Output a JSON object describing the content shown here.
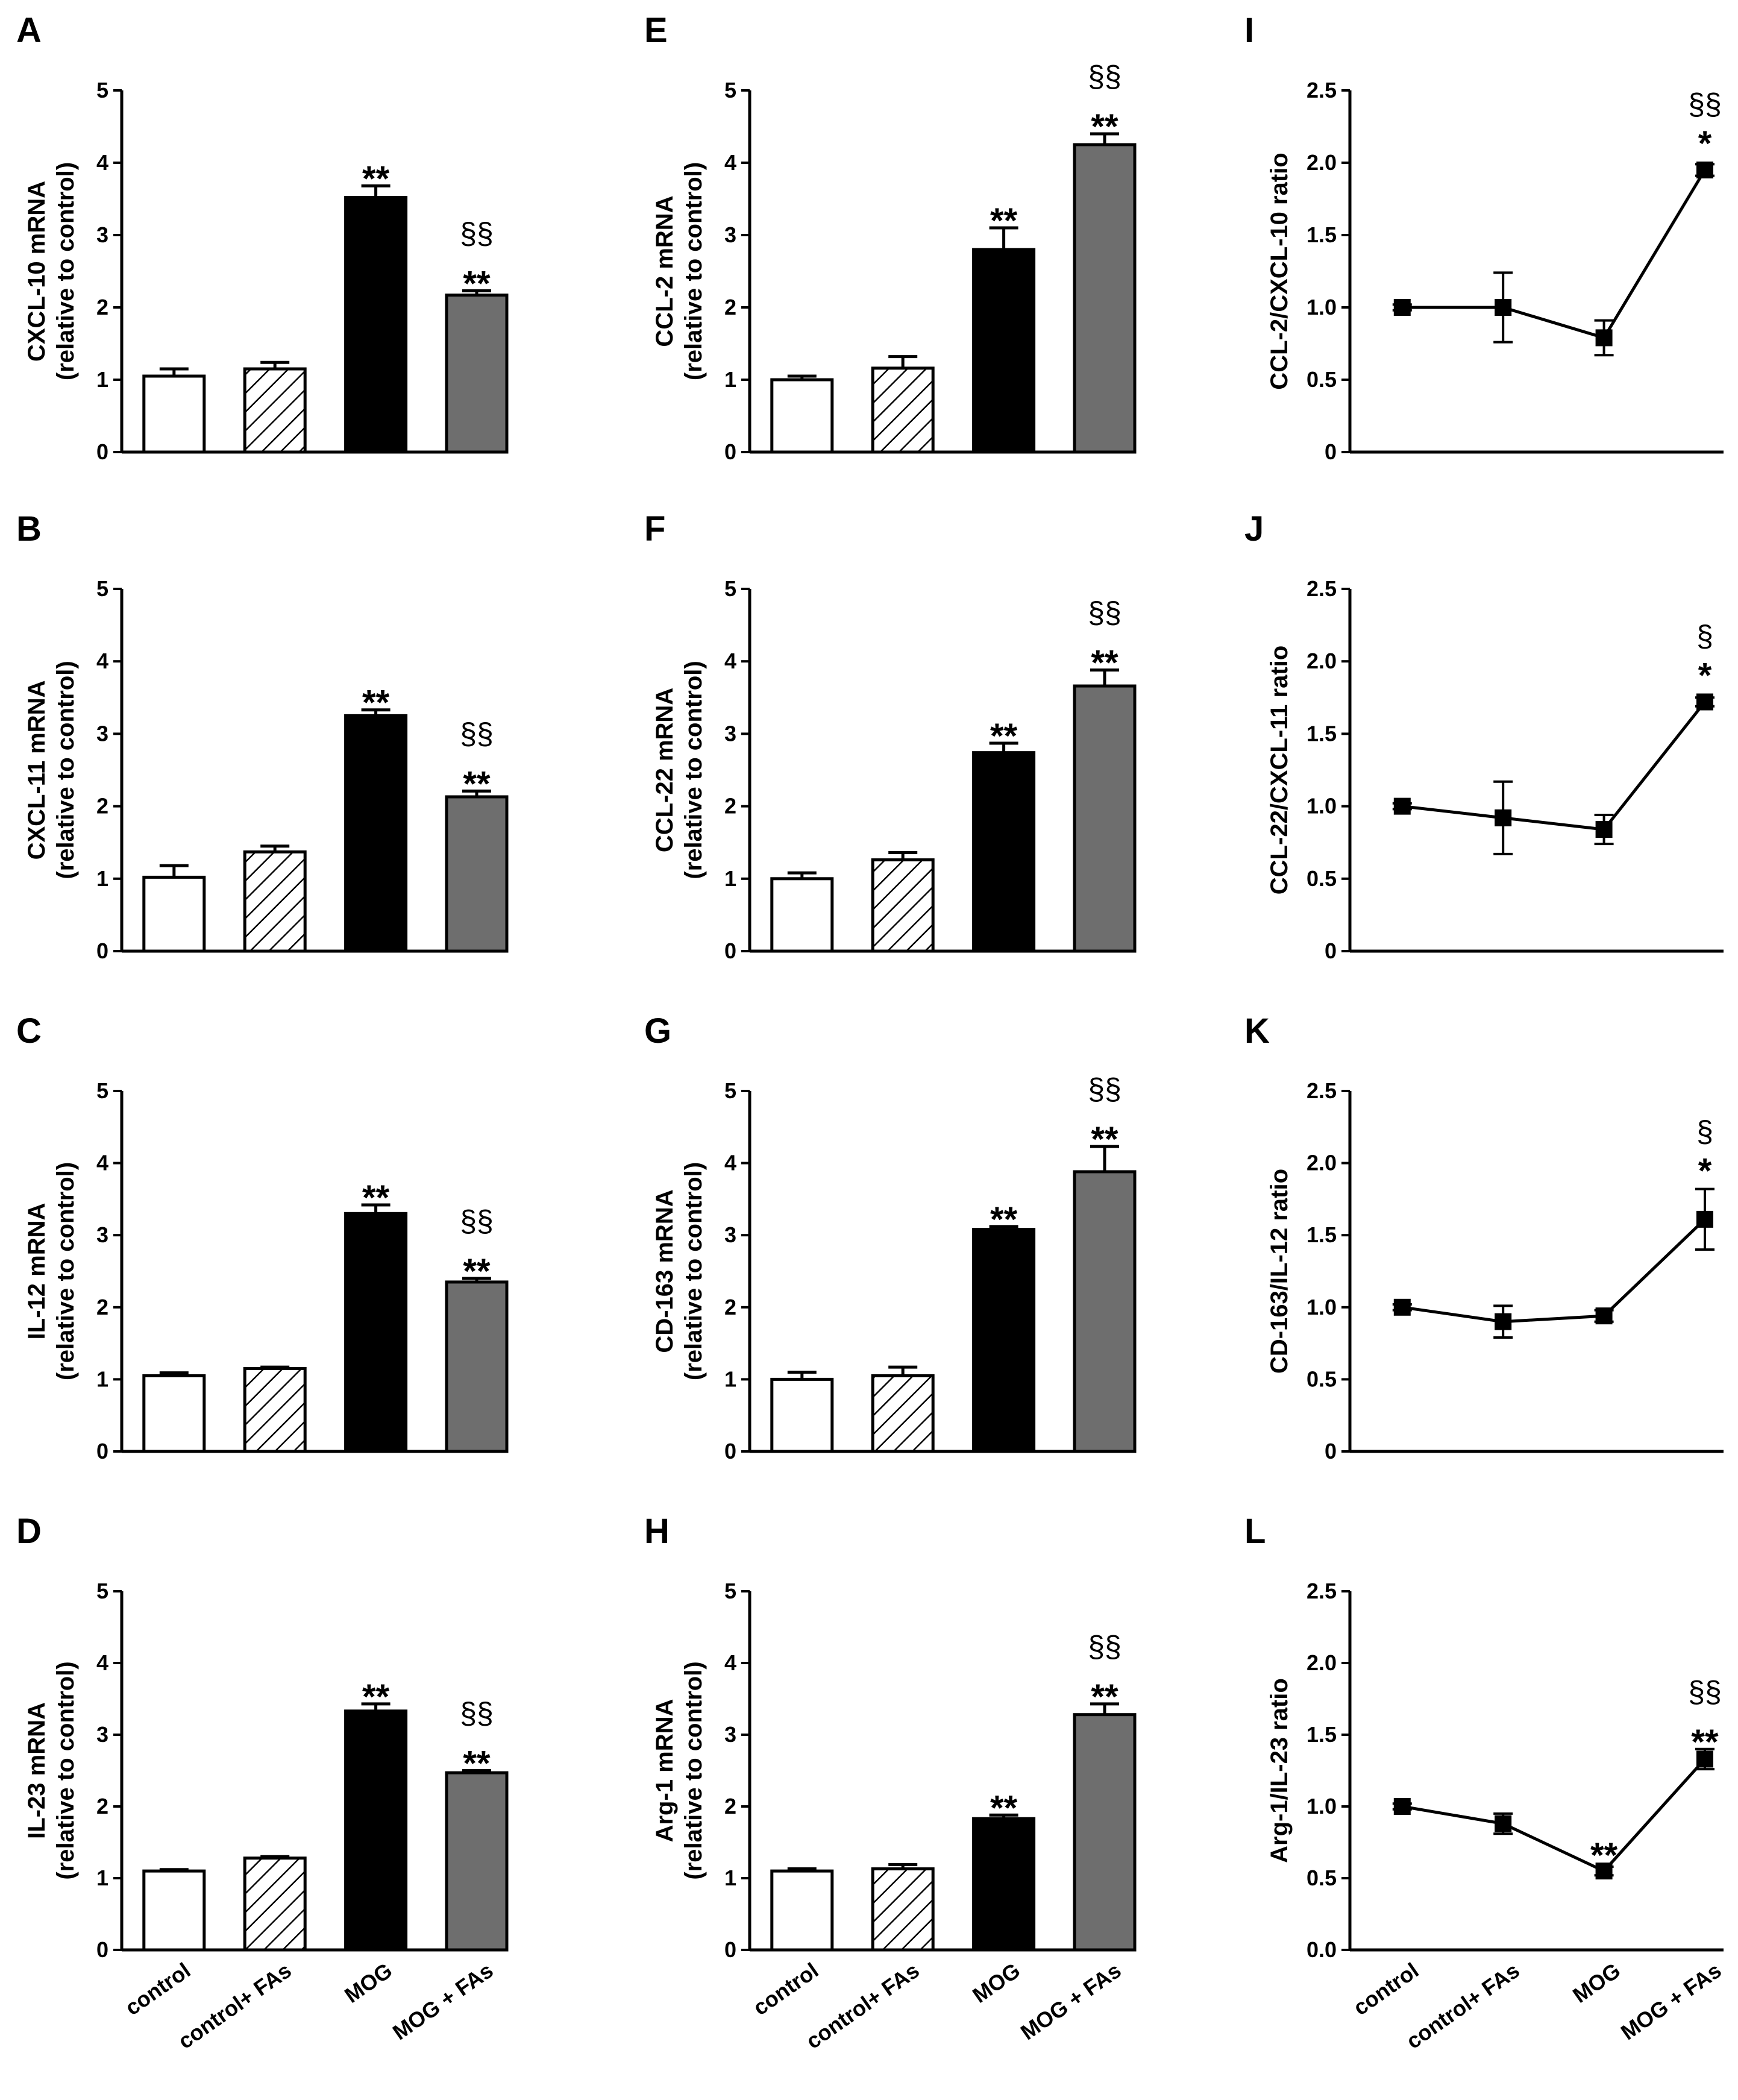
{
  "colors": {
    "axis": "#000000",
    "control": "#ffffff",
    "control_fas": "hatched",
    "mog": "#000000",
    "mog_fas": "#6e6e6e",
    "line": "#000000"
  },
  "chart_data": [
    {
      "id": "A",
      "type": "bar",
      "ylabel": [
        "CXCL-10 mRNA",
        "(relative to control)"
      ],
      "ylim": [
        0,
        5
      ],
      "ticks": [
        "0",
        "1",
        "2",
        "3",
        "4",
        "5"
      ],
      "categories": [
        "control",
        "control+ FAs",
        "MOG",
        "MOG + FAs"
      ],
      "values": [
        1.05,
        1.15,
        3.52,
        2.17
      ],
      "errors": [
        0.1,
        0.09,
        0.16,
        0.06
      ],
      "annotations": [
        {
          "index": 2,
          "lines": [
            "**"
          ]
        },
        {
          "index": 3,
          "lines": [
            "§§",
            "**"
          ]
        }
      ]
    },
    {
      "id": "B",
      "type": "bar",
      "ylabel": [
        "CXCL-11 mRNA",
        "(relative to control)"
      ],
      "ylim": [
        0,
        5
      ],
      "ticks": [
        "0",
        "1",
        "2",
        "3",
        "4",
        "5"
      ],
      "categories": [
        "control",
        "control+ FAs",
        "MOG",
        "MOG + FAs"
      ],
      "values": [
        1.02,
        1.37,
        3.25,
        2.13
      ],
      "errors": [
        0.16,
        0.08,
        0.08,
        0.08
      ],
      "annotations": [
        {
          "index": 2,
          "lines": [
            "**"
          ]
        },
        {
          "index": 3,
          "lines": [
            "§§",
            "**"
          ]
        }
      ]
    },
    {
      "id": "C",
      "type": "bar",
      "ylabel": [
        "IL-12 mRNA",
        "(relative to control)"
      ],
      "ylim": [
        0,
        5
      ],
      "ticks": [
        "0",
        "1",
        "2",
        "3",
        "4",
        "5"
      ],
      "categories": [
        "control",
        "control+ FAs",
        "MOG",
        "MOG + FAs"
      ],
      "values": [
        1.05,
        1.15,
        3.3,
        2.35
      ],
      "errors": [
        0.04,
        0.02,
        0.12,
        0.05
      ],
      "annotations": [
        {
          "index": 2,
          "lines": [
            "**"
          ]
        },
        {
          "index": 3,
          "lines": [
            "§§",
            "**"
          ]
        }
      ]
    },
    {
      "id": "D",
      "type": "bar",
      "ylabel": [
        "IL-23 mRNA",
        "(relative to control)"
      ],
      "ylim": [
        0,
        5
      ],
      "ticks": [
        "0",
        "1",
        "2",
        "3",
        "4",
        "5"
      ],
      "categories": [
        "control",
        "control+ FAs",
        "MOG",
        "MOG + FAs"
      ],
      "values": [
        1.1,
        1.28,
        3.33,
        2.47
      ],
      "errors": [
        0.02,
        0.02,
        0.1,
        0.03
      ],
      "annotations": [
        {
          "index": 2,
          "lines": [
            "**"
          ]
        },
        {
          "index": 3,
          "lines": [
            "§§",
            "**"
          ]
        }
      ]
    },
    {
      "id": "E",
      "type": "bar",
      "ylabel": [
        "CCL-2 mRNA",
        "(relative to control)"
      ],
      "ylim": [
        0,
        5
      ],
      "ticks": [
        "0",
        "1",
        "2",
        "3",
        "4",
        "5"
      ],
      "categories": [
        "control",
        "control+ FAs",
        "MOG",
        "MOG + FAs"
      ],
      "values": [
        1.0,
        1.16,
        2.8,
        4.25
      ],
      "errors": [
        0.05,
        0.16,
        0.3,
        0.15
      ],
      "annotations": [
        {
          "index": 2,
          "lines": [
            "**"
          ]
        },
        {
          "index": 3,
          "lines": [
            "§§",
            "**"
          ]
        }
      ]
    },
    {
      "id": "F",
      "type": "bar",
      "ylabel": [
        "CCL-22 mRNA",
        "(relative to control)"
      ],
      "ylim": [
        0,
        5
      ],
      "ticks": [
        "0",
        "1",
        "2",
        "3",
        "4",
        "5"
      ],
      "categories": [
        "control",
        "control+ FAs",
        "MOG",
        "MOG + FAs"
      ],
      "values": [
        1.0,
        1.26,
        2.74,
        3.66
      ],
      "errors": [
        0.08,
        0.1,
        0.13,
        0.22
      ],
      "annotations": [
        {
          "index": 2,
          "lines": [
            "**"
          ]
        },
        {
          "index": 3,
          "lines": [
            "§§",
            "**"
          ]
        }
      ]
    },
    {
      "id": "G",
      "type": "bar",
      "ylabel": [
        "CD-163 mRNA",
        "(relative to control)"
      ],
      "ylim": [
        0,
        5
      ],
      "ticks": [
        "0",
        "1",
        "2",
        "3",
        "4",
        "5"
      ],
      "categories": [
        "control",
        "control+ FAs",
        "MOG",
        "MOG + FAs"
      ],
      "values": [
        1.0,
        1.05,
        3.08,
        3.88
      ],
      "errors": [
        0.1,
        0.12,
        0.04,
        0.35
      ],
      "annotations": [
        {
          "index": 2,
          "lines": [
            "**"
          ]
        },
        {
          "index": 3,
          "lines": [
            "§§",
            "**"
          ]
        }
      ]
    },
    {
      "id": "H",
      "type": "bar",
      "ylabel": [
        "Arg-1 mRNA",
        "(relative to control)"
      ],
      "ylim": [
        0,
        5
      ],
      "ticks": [
        "0",
        "1",
        "2",
        "3",
        "4",
        "5"
      ],
      "categories": [
        "control",
        "control+ FAs",
        "MOG",
        "MOG + FAs"
      ],
      "values": [
        1.1,
        1.13,
        1.83,
        3.28
      ],
      "errors": [
        0.03,
        0.06,
        0.05,
        0.15
      ],
      "annotations": [
        {
          "index": 2,
          "lines": [
            "**"
          ]
        },
        {
          "index": 3,
          "lines": [
            "§§",
            "**"
          ]
        }
      ]
    },
    {
      "id": "I",
      "type": "line",
      "ylabel": [
        "CCL-2/CXCL-10 ratio"
      ],
      "ylim": [
        0,
        2.5
      ],
      "ticks": [
        "0",
        "0.5",
        "1.0",
        "1.5",
        "2.0",
        "2.5"
      ],
      "categories": [
        "control",
        "control+ FAs",
        "MOG",
        "MOG + FAs"
      ],
      "values": [
        1.0,
        1.0,
        0.79,
        1.95
      ],
      "errors": [
        0.02,
        0.24,
        0.12,
        0.04
      ],
      "annotations": [
        {
          "index": 3,
          "lines": [
            "§§",
            "*"
          ]
        }
      ]
    },
    {
      "id": "J",
      "type": "line",
      "ylabel": [
        "CCL-22/CXCL-11 ratio"
      ],
      "ylim": [
        0,
        2.5
      ],
      "ticks": [
        "0",
        "0.5",
        "1.0",
        "1.5",
        "2.0",
        "2.5"
      ],
      "categories": [
        "control",
        "control+ FAs",
        "MOG",
        "MOG + FAs"
      ],
      "values": [
        1.0,
        0.92,
        0.84,
        1.72
      ],
      "errors": [
        0.02,
        0.25,
        0.1,
        0.03
      ],
      "annotations": [
        {
          "index": 3,
          "lines": [
            "§",
            "*"
          ]
        }
      ]
    },
    {
      "id": "K",
      "type": "line",
      "ylabel": [
        "CD-163/IL-12 ratio"
      ],
      "ylim": [
        0,
        2.5
      ],
      "ticks": [
        "0",
        "0.5",
        "1.0",
        "1.5",
        "2.0",
        "2.5"
      ],
      "categories": [
        "control",
        "control+ FAs",
        "MOG",
        "MOG + FAs"
      ],
      "values": [
        1.0,
        0.9,
        0.94,
        1.61
      ],
      "errors": [
        0.02,
        0.11,
        0.04,
        0.21
      ],
      "annotations": [
        {
          "index": 3,
          "lines": [
            "§",
            "*"
          ]
        }
      ]
    },
    {
      "id": "L",
      "type": "line",
      "ylabel": [
        "Arg-1/IL-23 ratio"
      ],
      "ylim": [
        0,
        2.5
      ],
      "ticks": [
        "0.0",
        "0.5",
        "1.0",
        "1.5",
        "2.0",
        "2.5"
      ],
      "categories": [
        "control",
        "control+ FAs",
        "MOG",
        "MOG + FAs"
      ],
      "values": [
        1.0,
        0.88,
        0.55,
        1.33
      ],
      "errors": [
        0.02,
        0.07,
        0.03,
        0.07
      ],
      "annotations": [
        {
          "index": 2,
          "lines": [
            "**"
          ]
        },
        {
          "index": 3,
          "lines": [
            "§§",
            "**"
          ]
        }
      ]
    }
  ]
}
